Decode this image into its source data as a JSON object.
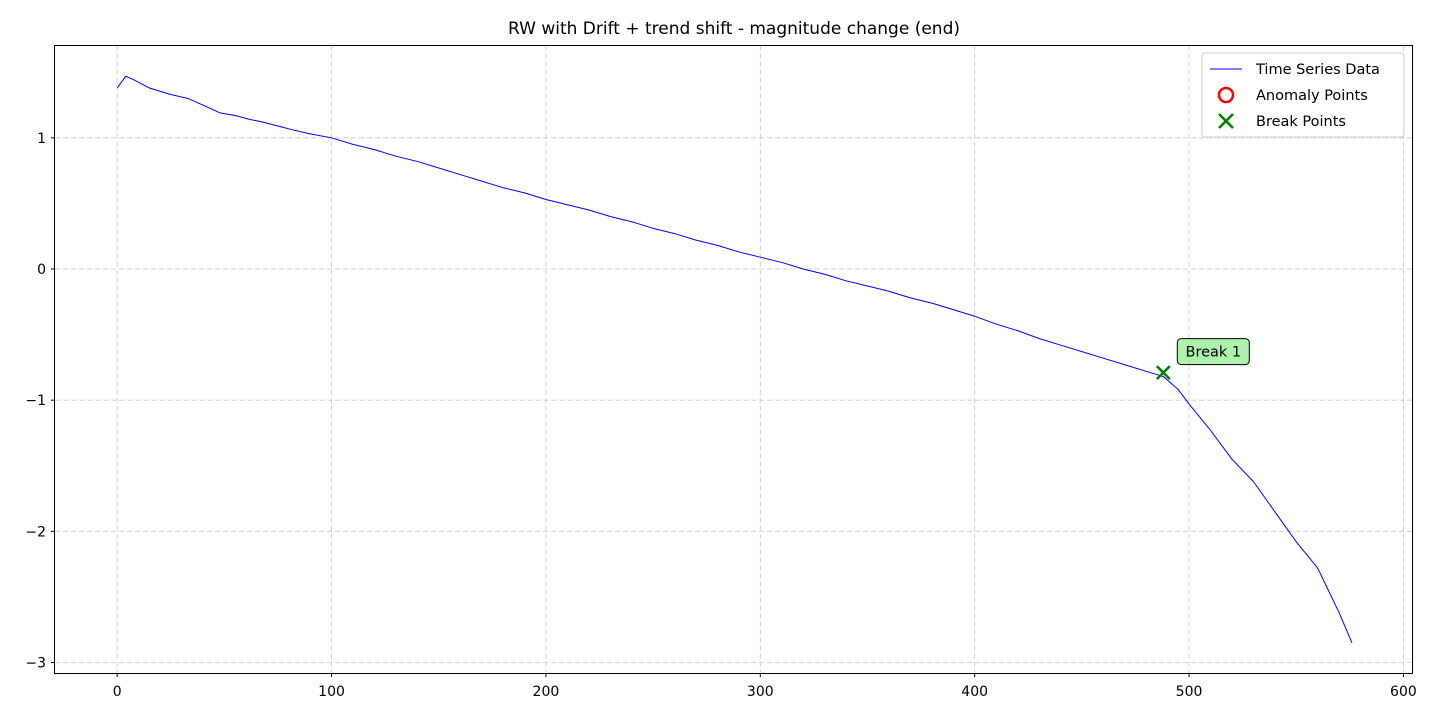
{
  "chart_data": {
    "type": "line",
    "title": "RW with Drift + trend shift - magnitude change (end)",
    "xlabel": "",
    "ylabel": "",
    "xlim": [
      -29,
      604
    ],
    "ylim": [
      -3.08,
      1.7
    ],
    "xticks": [
      0,
      100,
      200,
      300,
      400,
      500,
      600
    ],
    "yticks": [
      1,
      0,
      -1,
      -2,
      -3
    ],
    "ytick_labels": [
      "1",
      "0",
      "−1",
      "−2",
      "−3"
    ],
    "grid": true,
    "legend_placement": "upper-right",
    "series": [
      {
        "name": "Time Series Data",
        "color": "#0000ff",
        "x": [
          0,
          4,
          8,
          15,
          25,
          33,
          40,
          48,
          55,
          62,
          68,
          75,
          82,
          90,
          100,
          110,
          120,
          130,
          140,
          150,
          160,
          170,
          180,
          190,
          200,
          210,
          220,
          230,
          240,
          250,
          260,
          270,
          280,
          290,
          300,
          310,
          320,
          330,
          340,
          350,
          360,
          370,
          380,
          390,
          400,
          410,
          420,
          430,
          440,
          450,
          460,
          470,
          480,
          488,
          495,
          500,
          510,
          520,
          530,
          540,
          550,
          560,
          565,
          570,
          576
        ],
        "y": [
          1.38,
          1.47,
          1.44,
          1.38,
          1.33,
          1.3,
          1.25,
          1.19,
          1.17,
          1.14,
          1.12,
          1.09,
          1.06,
          1.03,
          1.0,
          0.95,
          0.91,
          0.86,
          0.82,
          0.77,
          0.72,
          0.67,
          0.62,
          0.58,
          0.53,
          0.49,
          0.45,
          0.4,
          0.36,
          0.31,
          0.27,
          0.22,
          0.18,
          0.13,
          0.09,
          0.05,
          0.0,
          -0.04,
          -0.09,
          -0.13,
          -0.17,
          -0.22,
          -0.26,
          -0.31,
          -0.36,
          -0.42,
          -0.47,
          -0.53,
          -0.58,
          -0.63,
          -0.68,
          -0.73,
          -0.78,
          -0.82,
          -0.92,
          -1.03,
          -1.23,
          -1.45,
          -1.62,
          -1.85,
          -2.08,
          -2.28,
          -2.45,
          -2.62,
          -2.85
        ]
      },
      {
        "name": "Anomaly Points",
        "color": "#ff0000",
        "x": [],
        "y": []
      },
      {
        "name": "Break Points",
        "color": "#008000",
        "x": [
          488
        ],
        "y": [
          -0.79
        ]
      }
    ],
    "annotations": [
      {
        "text": "Break 1",
        "x": 488,
        "y": -0.79,
        "bgcolor": "#90ee90"
      }
    ]
  }
}
